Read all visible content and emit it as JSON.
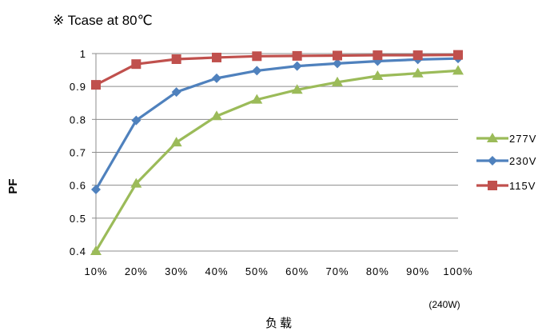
{
  "chart_data": {
    "type": "line",
    "note": "※ Tcase at 80℃",
    "ylabel": "PF",
    "xlabel": "负载",
    "x_note": "(240W)",
    "categories": [
      "10%",
      "20%",
      "30%",
      "40%",
      "50%",
      "60%",
      "70%",
      "80%",
      "90%",
      "100%"
    ],
    "ylim": [
      0.4,
      1.0
    ],
    "yticks": [
      "0.4",
      "0.5",
      "0.6",
      "0.7",
      "0.8",
      "0.9",
      "1"
    ],
    "grid": true,
    "legend_position": "right",
    "series": [
      {
        "name": "277V",
        "color": "#9BBB59",
        "marker": "triangle",
        "values": [
          0.4,
          0.605,
          0.73,
          0.81,
          0.86,
          0.89,
          0.913,
          0.932,
          0.94,
          0.948
        ]
      },
      {
        "name": "230V",
        "color": "#4F81BD",
        "marker": "diamond",
        "values": [
          0.587,
          0.797,
          0.883,
          0.925,
          0.948,
          0.962,
          0.97,
          0.977,
          0.982,
          0.985
        ]
      },
      {
        "name": "115V",
        "color": "#C0504D",
        "marker": "square",
        "values": [
          0.905,
          0.968,
          0.983,
          0.988,
          0.992,
          0.993,
          0.994,
          0.995,
          0.995,
          0.996
        ]
      }
    ]
  }
}
